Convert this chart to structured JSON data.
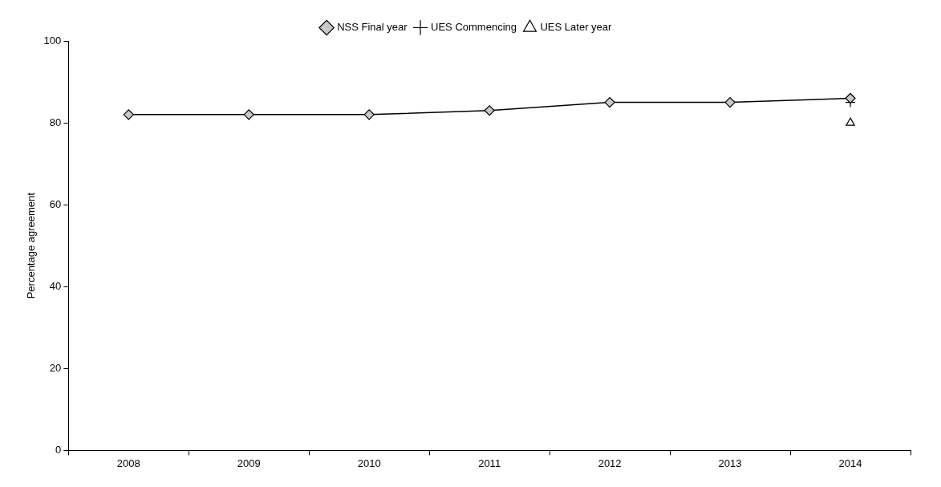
{
  "chart_data": {
    "type": "line",
    "ylabel": "Percentage agreement",
    "categories": [
      "2008",
      "2009",
      "2010",
      "2011",
      "2012",
      "2013",
      "2014"
    ],
    "series": [
      {
        "name": "NSS Final year",
        "color": "#000000",
        "marker": "diamond",
        "line_style": "solid",
        "values": [
          82,
          82,
          82,
          83,
          85,
          85,
          86
        ]
      },
      {
        "name": "UES Commencing",
        "color": "#000000",
        "marker": "cross",
        "line_style": "dashed",
        "values": [
          null,
          null,
          null,
          null,
          null,
          null,
          85
        ]
      },
      {
        "name": "UES Later year",
        "color": "#000000",
        "marker": "triangle",
        "line_style": "solid",
        "values": [
          null,
          null,
          null,
          null,
          null,
          null,
          80
        ]
      }
    ],
    "ylim": [
      0,
      100
    ],
    "yticks": [
      0,
      20,
      40,
      60,
      80,
      100
    ],
    "grid": false,
    "legend": "top"
  }
}
